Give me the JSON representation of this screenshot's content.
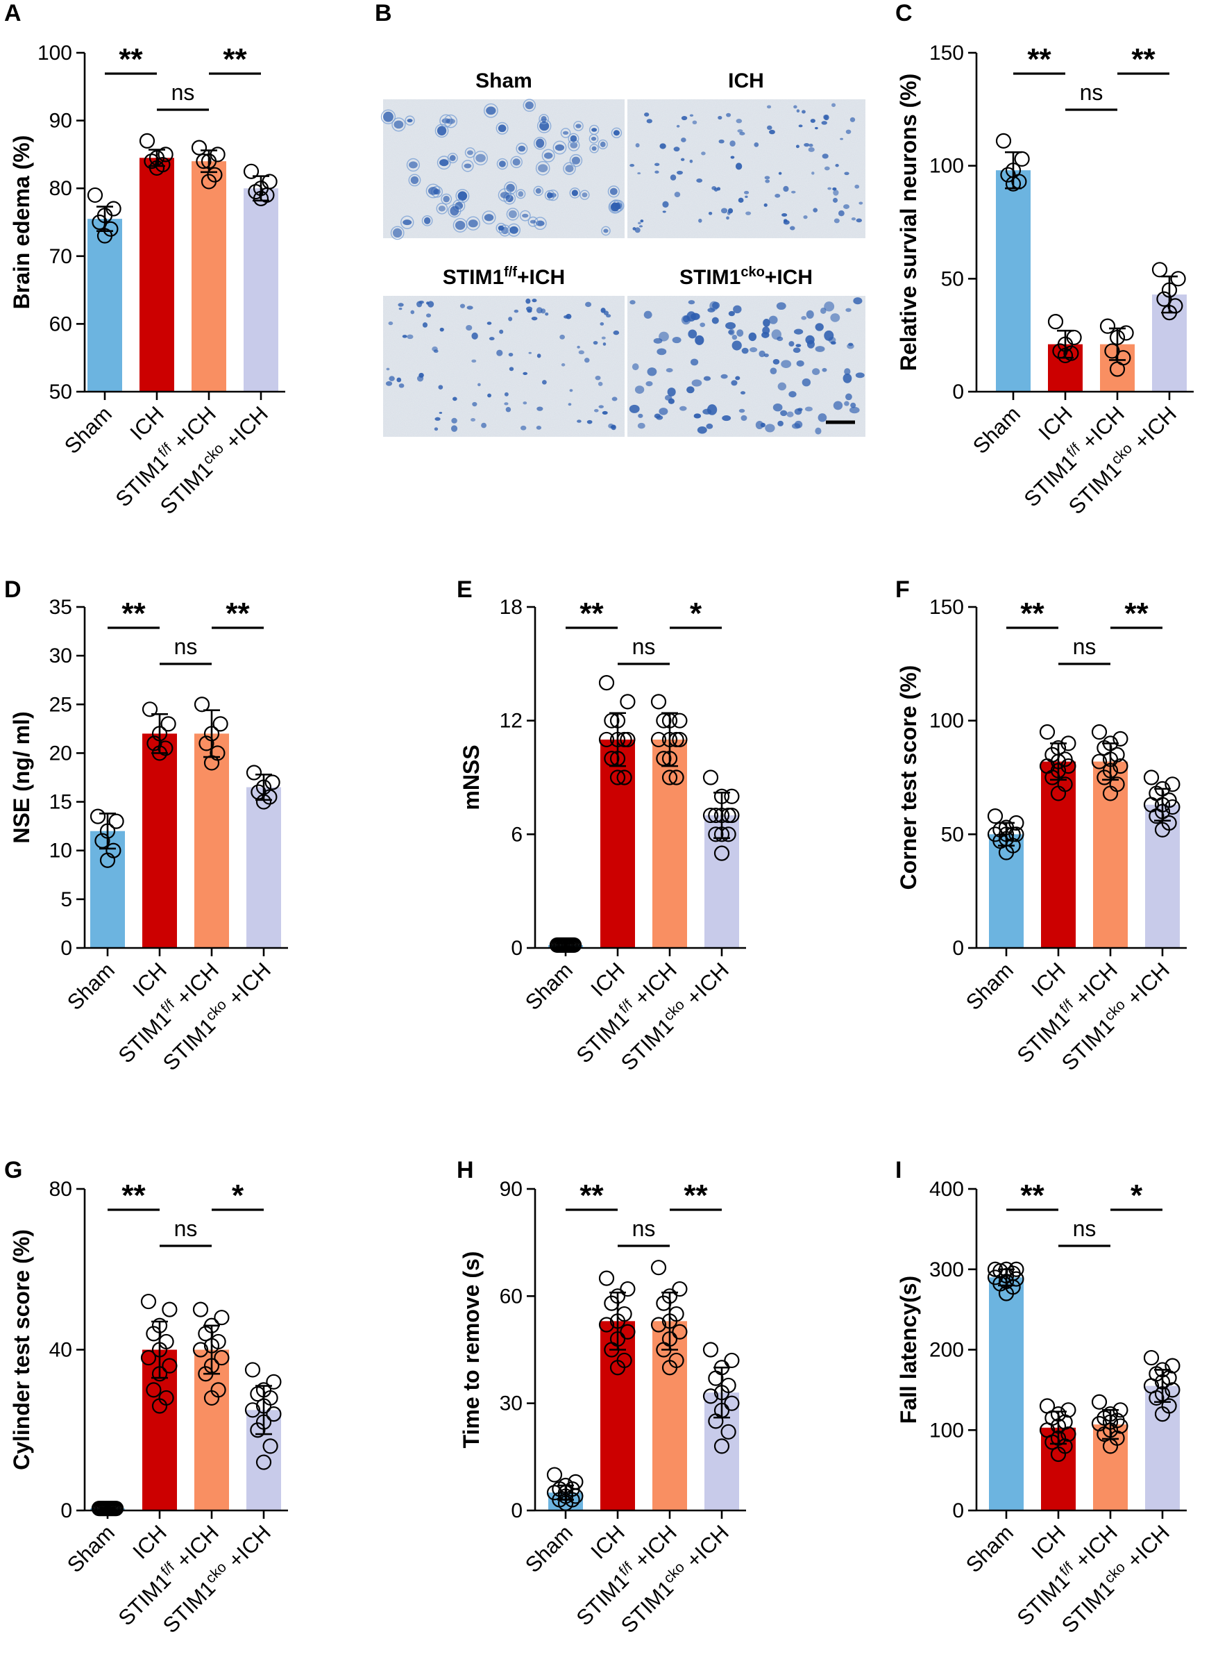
{
  "colors": {
    "sham": "#6cb4e0",
    "ich": "#cc0000",
    "stim_ff": "#f98f62",
    "stim_cko": "#c8cbea",
    "tissue_bg": "#e3e8ee",
    "stain": "#2f5fb0"
  },
  "categories": [
    {
      "main": "Sham",
      "sup": "",
      "suffix": ""
    },
    {
      "main": "ICH",
      "sup": "",
      "suffix": ""
    },
    {
      "main": "STIM1",
      "sup": "f/f",
      "suffix": "+ICH"
    },
    {
      "main": "STIM1",
      "sup": "cko",
      "suffix": "+ICH"
    }
  ],
  "images": {
    "letter": "B",
    "titles": [
      {
        "main": "Sham",
        "sup": "",
        "suffix": ""
      },
      {
        "main": "ICH",
        "sup": "",
        "suffix": ""
      },
      {
        "main": "STIM1",
        "sup": "f/f",
        "suffix": "+ICH"
      },
      {
        "main": "STIM1",
        "sup": "cko",
        "suffix": "+ICH"
      }
    ]
  },
  "chart_data": [
    {
      "letter": "A",
      "type": "bar",
      "ylabel": "Brain edema (%)",
      "ylim": [
        50,
        100
      ],
      "yticks": [
        50,
        60,
        70,
        80,
        90,
        100
      ],
      "values": [
        75.5,
        84.5,
        84.0,
        80.0
      ],
      "sd": [
        1.8,
        1.2,
        1.6,
        1.8
      ],
      "points": [
        [
          79,
          77,
          76,
          75,
          74,
          73
        ],
        [
          87,
          85,
          84.5,
          84,
          83.5,
          83
        ],
        [
          86,
          85,
          84,
          84,
          82,
          81
        ],
        [
          82.5,
          81,
          80,
          79.5,
          79,
          78.5
        ]
      ],
      "significance": [
        {
          "from": 0,
          "to": 1,
          "label": "**",
          "level": 2
        },
        {
          "from": 1,
          "to": 2,
          "label": "ns",
          "level": 1
        },
        {
          "from": 2,
          "to": 3,
          "label": "**",
          "level": 2
        }
      ]
    },
    {
      "letter": "C",
      "type": "bar",
      "ylabel": "Relative survial neurons (%)",
      "ylim": [
        0,
        150
      ],
      "yticks": [
        0,
        50,
        100,
        150
      ],
      "values": [
        98,
        21,
        21,
        43
      ],
      "sd": [
        8,
        6,
        7,
        8
      ],
      "points": [
        [
          111,
          103,
          98,
          96,
          93,
          92
        ],
        [
          31,
          24,
          21,
          18,
          17,
          16
        ],
        [
          29,
          26,
          24,
          18,
          15,
          10
        ],
        [
          54,
          50,
          45,
          41,
          38,
          35
        ]
      ],
      "significance": [
        {
          "from": 0,
          "to": 1,
          "label": "**",
          "level": 2
        },
        {
          "from": 1,
          "to": 2,
          "label": "ns",
          "level": 1
        },
        {
          "from": 2,
          "to": 3,
          "label": "**",
          "level": 2
        }
      ]
    },
    {
      "letter": "D",
      "type": "bar",
      "ylabel": "NSE (ng/ ml)",
      "ylim": [
        0,
        35
      ],
      "yticks": [
        0,
        5,
        10,
        15,
        20,
        25,
        30,
        35
      ],
      "values": [
        12,
        22,
        22,
        16.5
      ],
      "sd": [
        1.8,
        2.0,
        2.4,
        1.3
      ],
      "points": [
        [
          13.5,
          13,
          12,
          11,
          10,
          9
        ],
        [
          24.5,
          23,
          22,
          21,
          20.5,
          20
        ],
        [
          25,
          23,
          22,
          21,
          20,
          19
        ],
        [
          18,
          17,
          16.5,
          16,
          15.5,
          15
        ]
      ],
      "significance": [
        {
          "from": 0,
          "to": 1,
          "label": "**",
          "level": 2
        },
        {
          "from": 1,
          "to": 2,
          "label": "ns",
          "level": 1
        },
        {
          "from": 2,
          "to": 3,
          "label": "**",
          "level": 2
        }
      ]
    },
    {
      "letter": "E",
      "type": "bar",
      "ylabel": "mNSS",
      "ylim": [
        0,
        18
      ],
      "yticks": [
        0,
        6,
        12,
        18
      ],
      "values": [
        0.15,
        11,
        11,
        7
      ],
      "sd": [
        0.1,
        1.4,
        1.4,
        1.2
      ],
      "points": [
        [
          0.15,
          0.15,
          0.15,
          0.15,
          0.15,
          0.15,
          0.15,
          0.15,
          0.15,
          0.15,
          0.15,
          0.15
        ],
        [
          14,
          13,
          12,
          12,
          11,
          11,
          11,
          11,
          10,
          10,
          9,
          9
        ],
        [
          13,
          12,
          12,
          12,
          11,
          11,
          11,
          11,
          10,
          10,
          9,
          9
        ],
        [
          9,
          8,
          8,
          7,
          7,
          7,
          7,
          7,
          6,
          6,
          6,
          5
        ]
      ],
      "significance": [
        {
          "from": 0,
          "to": 1,
          "label": "**",
          "level": 2
        },
        {
          "from": 1,
          "to": 2,
          "label": "ns",
          "level": 1
        },
        {
          "from": 2,
          "to": 3,
          "label": "*",
          "level": 2
        }
      ]
    },
    {
      "letter": "F",
      "type": "bar",
      "ylabel": "Corner test score (%)",
      "ylim": [
        0,
        150
      ],
      "yticks": [
        0,
        50,
        100,
        150
      ],
      "values": [
        50,
        82,
        82,
        63
      ],
      "sd": [
        5,
        8,
        8,
        7
      ],
      "points": [
        [
          58,
          55,
          53,
          52,
          50,
          50,
          50,
          50,
          48,
          47,
          45,
          42
        ],
        [
          95,
          90,
          88,
          85,
          83,
          82,
          80,
          80,
          78,
          75,
          72,
          68
        ],
        [
          95,
          92,
          90,
          88,
          85,
          83,
          82,
          80,
          78,
          75,
          72,
          68
        ],
        [
          75,
          72,
          70,
          68,
          65,
          63,
          63,
          62,
          60,
          58,
          55,
          52
        ]
      ],
      "significance": [
        {
          "from": 0,
          "to": 1,
          "label": "**",
          "level": 2
        },
        {
          "from": 1,
          "to": 2,
          "label": "ns",
          "level": 1
        },
        {
          "from": 2,
          "to": 3,
          "label": "**",
          "level": 2
        }
      ]
    },
    {
      "letter": "G",
      "type": "bar",
      "ylabel": "Cylinder test score (%)",
      "ylim": [
        0,
        80
      ],
      "yticks": [
        0,
        40,
        80
      ],
      "values": [
        0.5,
        40,
        40,
        25
      ],
      "sd": [
        0.2,
        7,
        6,
        6
      ],
      "points": [
        [
          0.5,
          0.5,
          0.5,
          0.5,
          0.5,
          0.5,
          0.5,
          0.5,
          0.5,
          0.5,
          0.5,
          0.5
        ],
        [
          52,
          50,
          46,
          44,
          42,
          40,
          38,
          36,
          34,
          30,
          28,
          26
        ],
        [
          50,
          48,
          46,
          44,
          42,
          41,
          40,
          38,
          36,
          34,
          30,
          28
        ],
        [
          35,
          32,
          30,
          29,
          28,
          26,
          25,
          24,
          22,
          20,
          16,
          12
        ]
      ],
      "significance": [
        {
          "from": 0,
          "to": 1,
          "label": "**",
          "level": 2
        },
        {
          "from": 1,
          "to": 2,
          "label": "ns",
          "level": 1
        },
        {
          "from": 2,
          "to": 3,
          "label": "*",
          "level": 2
        }
      ]
    },
    {
      "letter": "H",
      "type": "bar",
      "ylabel": "Time to remove (s)",
      "ylim": [
        0,
        90
      ],
      "yticks": [
        0,
        30,
        60,
        90
      ],
      "values": [
        5,
        53,
        53,
        33
      ],
      "sd": [
        2,
        8,
        8,
        7
      ],
      "points": [
        [
          10,
          8,
          7,
          6,
          6,
          5,
          5,
          4,
          4,
          3,
          3,
          2
        ],
        [
          65,
          62,
          60,
          58,
          55,
          53,
          52,
          50,
          48,
          45,
          42,
          40
        ],
        [
          68,
          62,
          60,
          58,
          55,
          53,
          52,
          50,
          48,
          45,
          42,
          40
        ],
        [
          45,
          42,
          40,
          37,
          35,
          33,
          32,
          30,
          28,
          25,
          22,
          18
        ]
      ],
      "significance": [
        {
          "from": 0,
          "to": 1,
          "label": "**",
          "level": 2
        },
        {
          "from": 1,
          "to": 2,
          "label": "ns",
          "level": 1
        },
        {
          "from": 2,
          "to": 3,
          "label": "**",
          "level": 2
        }
      ]
    },
    {
      "letter": "I",
      "type": "bar",
      "ylabel": "Fall latency(s)",
      "ylim": [
        0,
        400
      ],
      "yticks": [
        0,
        100,
        200,
        300,
        400
      ],
      "values": [
        290,
        103,
        107,
        155
      ],
      "sd": [
        10,
        20,
        18,
        20
      ],
      "points": [
        [
          300,
          300,
          300,
          298,
          295,
          292,
          290,
          288,
          285,
          282,
          278,
          270
        ],
        [
          130,
          125,
          120,
          115,
          110,
          105,
          100,
          95,
          90,
          85,
          80,
          70
        ],
        [
          135,
          125,
          120,
          115,
          112,
          110,
          108,
          105,
          100,
          95,
          90,
          80
        ],
        [
          190,
          180,
          175,
          170,
          165,
          160,
          155,
          150,
          145,
          140,
          130,
          120
        ]
      ],
      "significance": [
        {
          "from": 0,
          "to": 1,
          "label": "**",
          "level": 2
        },
        {
          "from": 1,
          "to": 2,
          "label": "ns",
          "level": 1
        },
        {
          "from": 2,
          "to": 3,
          "label": "*",
          "level": 2
        }
      ]
    }
  ]
}
